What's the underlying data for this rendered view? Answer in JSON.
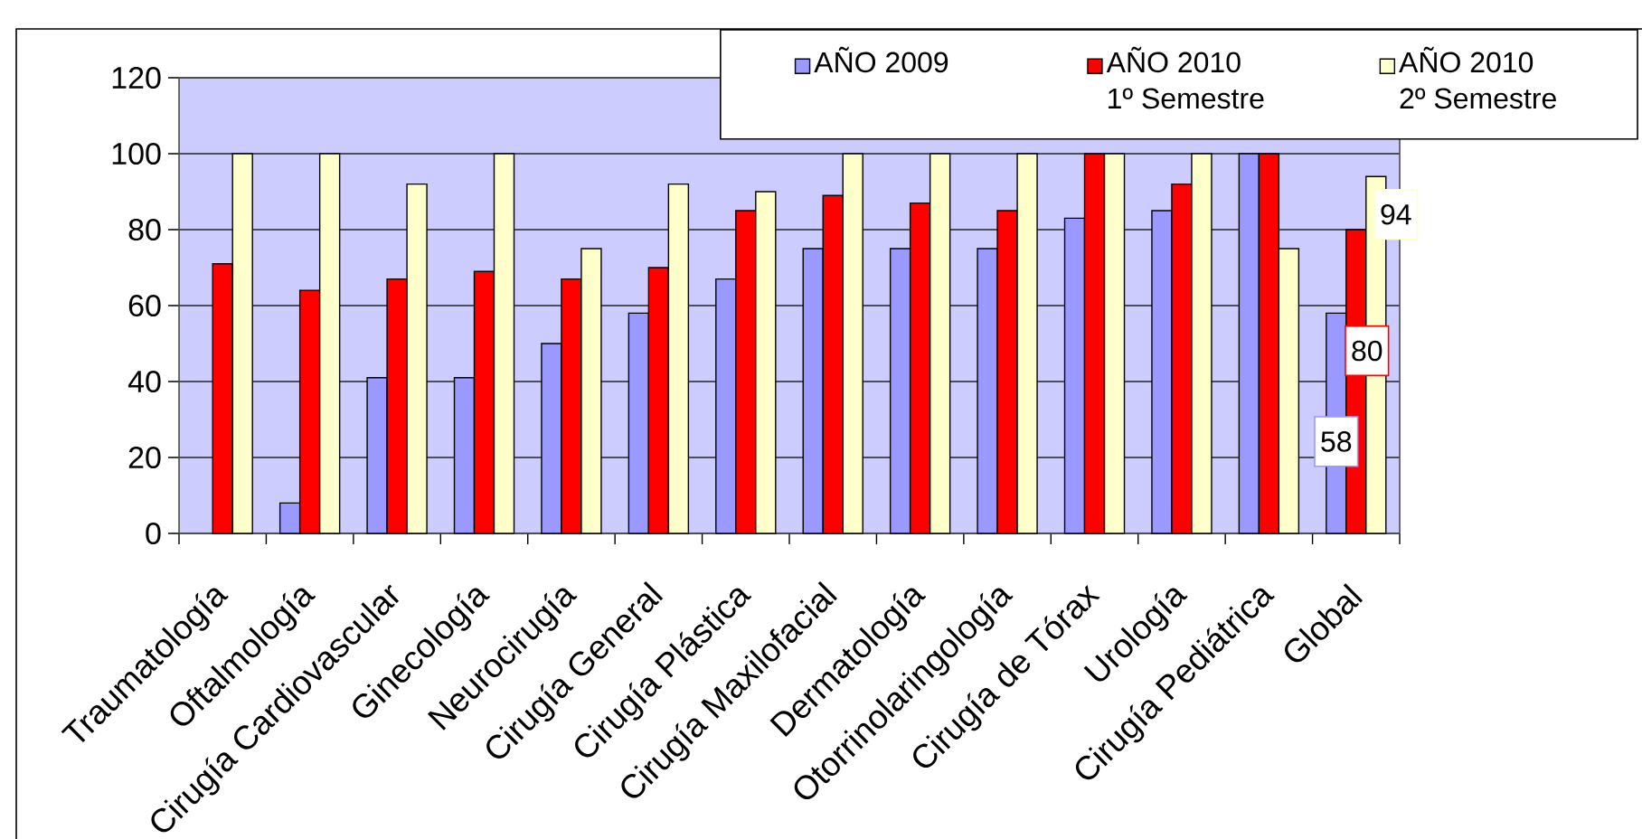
{
  "chart_data": {
    "type": "bar",
    "categories": [
      "Traumatología",
      "Oftalmología",
      "Cirugía Cardiovascular",
      "Ginecología",
      "Neurocirugía",
      "Cirugía General",
      "Cirugía Plástica",
      "Cirugía Maxilofacial",
      "Dermatología",
      "Otorrinolaringología",
      "Cirugía de Tórax",
      "Urología",
      "Cirugía Pediátrica",
      "Global"
    ],
    "series": [
      {
        "name": "AÑO 2009",
        "color": "#9999ff",
        "values": [
          null,
          8,
          41,
          41,
          50,
          58,
          67,
          75,
          75,
          75,
          83,
          85,
          100,
          58
        ],
        "value_labels": [
          null,
          null,
          null,
          null,
          null,
          null,
          null,
          null,
          null,
          null,
          null,
          null,
          null,
          "58"
        ]
      },
      {
        "name": "AÑO 2010 1º Semestre",
        "color": "#ff0000",
        "values": [
          71,
          64,
          67,
          69,
          67,
          70,
          85,
          89,
          87,
          85,
          100,
          92,
          100,
          80
        ],
        "value_labels": [
          null,
          null,
          null,
          null,
          null,
          null,
          null,
          null,
          null,
          null,
          null,
          null,
          null,
          "80"
        ]
      },
      {
        "name": "AÑO 2010 2º Semestre",
        "color": "#ffffcc",
        "values": [
          100,
          100,
          92,
          100,
          75,
          92,
          90,
          100,
          100,
          100,
          100,
          100,
          75,
          94
        ],
        "value_labels": [
          null,
          null,
          null,
          null,
          null,
          null,
          null,
          null,
          null,
          null,
          null,
          null,
          null,
          "94"
        ]
      }
    ],
    "ylim": [
      0,
      120
    ],
    "yticks": [
      0,
      20,
      40,
      60,
      80,
      100,
      120
    ],
    "grid": "y",
    "legend": "top right"
  }
}
